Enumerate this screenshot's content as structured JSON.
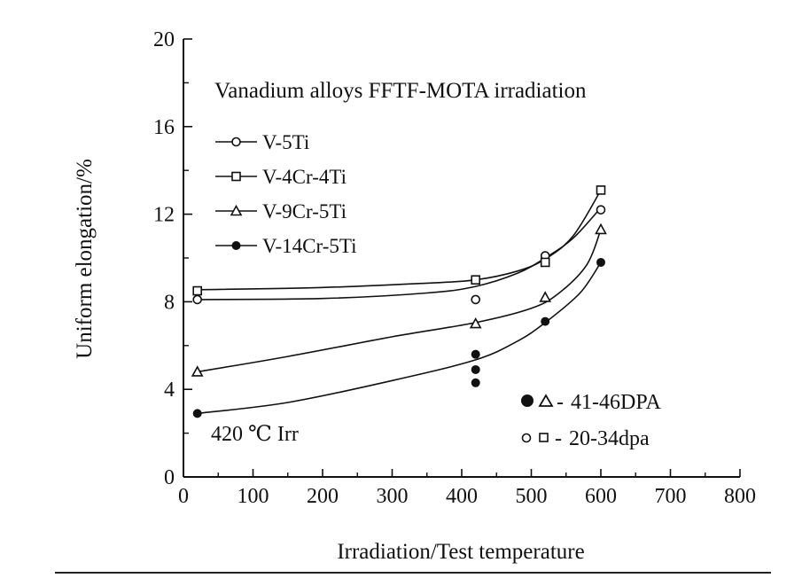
{
  "chart_data": {
    "type": "scatter",
    "title": "Vanadium alloys FFTF-MOTA irradiation",
    "xlabel": "Irradiation/Test temperature",
    "ylabel": "Uniform elongation/%",
    "xlim": [
      0,
      800
    ],
    "ylim": [
      0,
      20
    ],
    "xticks": [
      0,
      100,
      200,
      300,
      400,
      500,
      600,
      700,
      800
    ],
    "yticks": [
      0,
      4,
      8,
      12,
      16,
      20
    ],
    "grid": false,
    "legend_position": "top-left",
    "series": [
      {
        "name": "V-5Ti",
        "marker": "open-circle",
        "points": [
          [
            20,
            8.1
          ],
          [
            420,
            8.1
          ],
          [
            520,
            10.1
          ],
          [
            600,
            12.2
          ]
        ],
        "curve": [
          [
            20,
            8.1
          ],
          [
            200,
            8.15
          ],
          [
            350,
            8.4
          ],
          [
            420,
            8.7
          ],
          [
            480,
            9.3
          ],
          [
            520,
            10.0
          ],
          [
            560,
            10.9
          ],
          [
            600,
            12.3
          ]
        ]
      },
      {
        "name": "V-4Cr-4Ti",
        "marker": "open-square",
        "points": [
          [
            20,
            8.5
          ],
          [
            420,
            9.0
          ],
          [
            520,
            9.8
          ],
          [
            600,
            13.1
          ]
        ],
        "curve": [
          [
            20,
            8.55
          ],
          [
            200,
            8.65
          ],
          [
            350,
            8.85
          ],
          [
            420,
            9.0
          ],
          [
            480,
            9.4
          ],
          [
            520,
            9.95
          ],
          [
            560,
            11.0
          ],
          [
            600,
            13.1
          ]
        ]
      },
      {
        "name": "V-9Cr-5Ti",
        "marker": "open-triangle",
        "points": [
          [
            20,
            4.8
          ],
          [
            420,
            7.0
          ],
          [
            520,
            8.2
          ],
          [
            600,
            11.3
          ]
        ],
        "curve": [
          [
            20,
            4.8
          ],
          [
            150,
            5.5
          ],
          [
            300,
            6.4
          ],
          [
            420,
            7.05
          ],
          [
            500,
            7.7
          ],
          [
            540,
            8.4
          ],
          [
            580,
            9.7
          ],
          [
            600,
            11.3
          ]
        ]
      },
      {
        "name": "V-14Cr-5Ti",
        "marker": "filled-circle",
        "points": [
          [
            20,
            2.9
          ],
          [
            420,
            5.6
          ],
          [
            420,
            4.9
          ],
          [
            420,
            4.3
          ],
          [
            520,
            7.1
          ],
          [
            600,
            9.8
          ]
        ],
        "curve": [
          [
            20,
            2.9
          ],
          [
            150,
            3.4
          ],
          [
            300,
            4.4
          ],
          [
            420,
            5.35
          ],
          [
            480,
            6.2
          ],
          [
            520,
            7.05
          ],
          [
            570,
            8.4
          ],
          [
            600,
            9.8
          ]
        ]
      }
    ],
    "annotations": {
      "condition": "420 ℃ Irr",
      "key_filled": "41-46DPA",
      "key_open": "20-34dpa"
    }
  }
}
